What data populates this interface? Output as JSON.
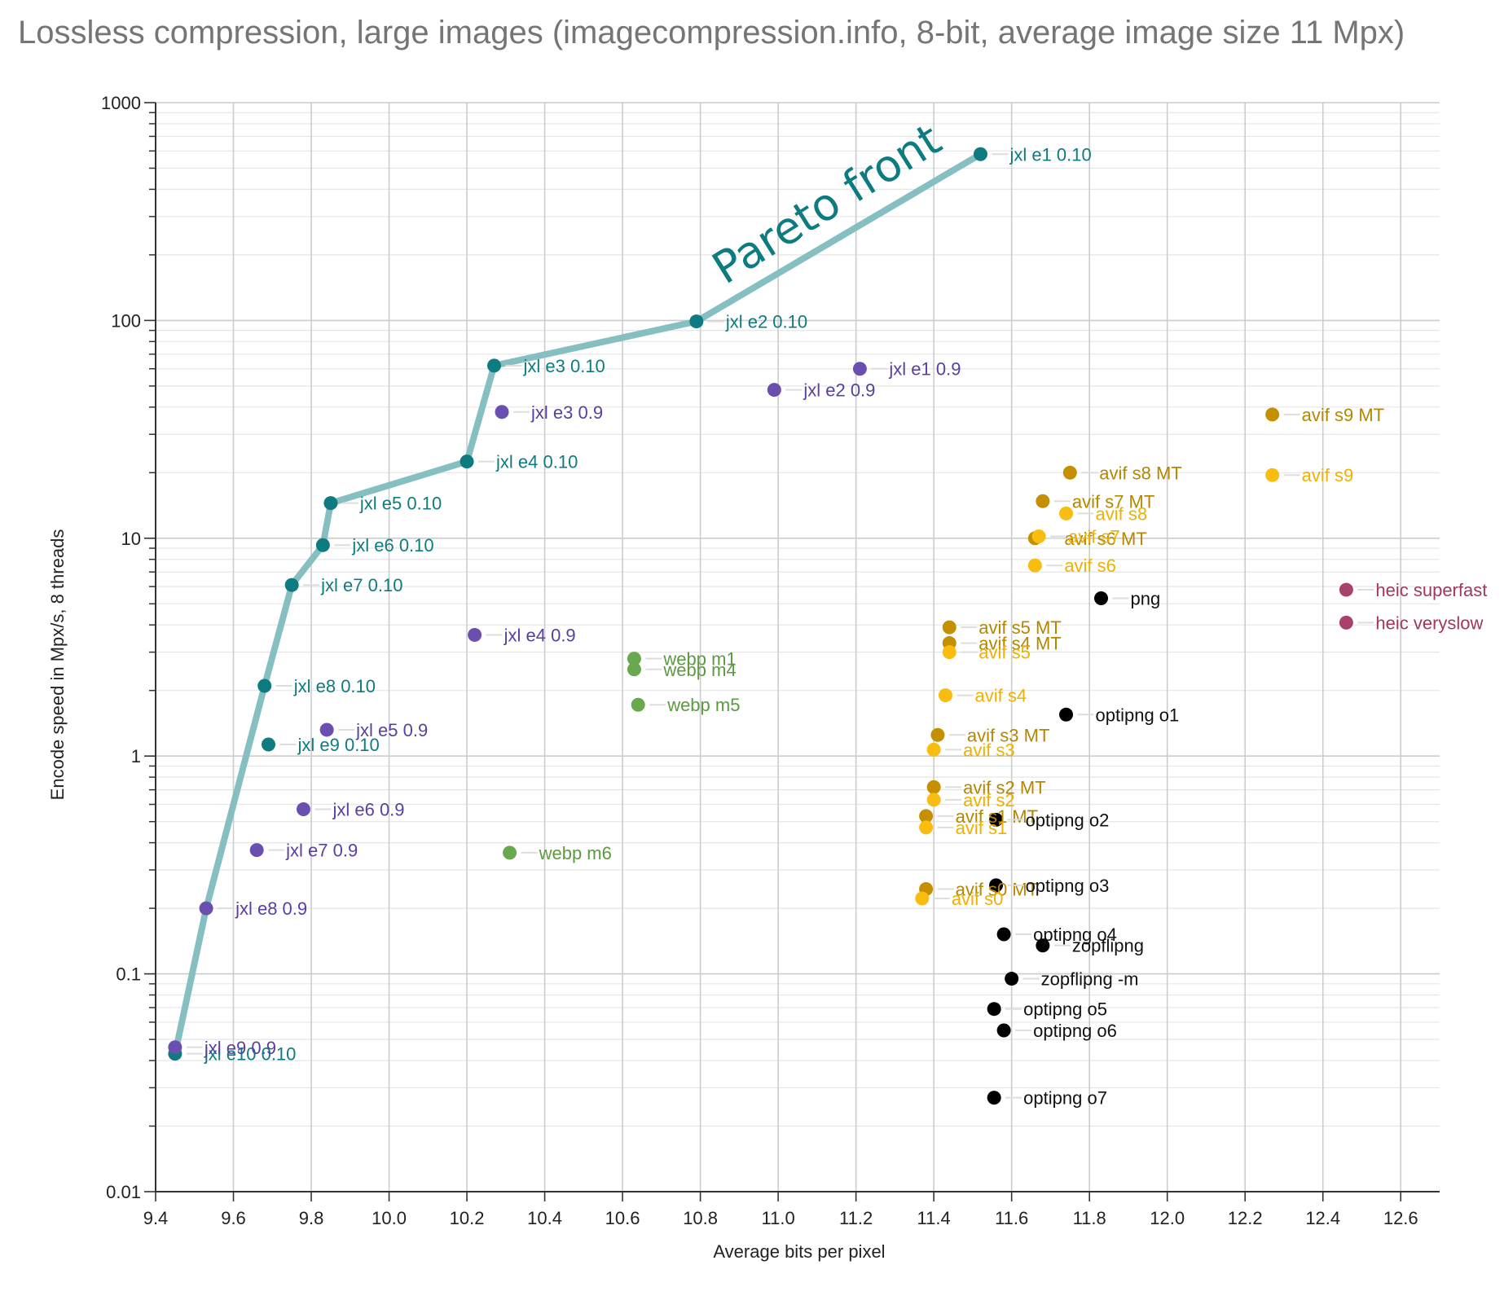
{
  "chart_data": {
    "type": "scatter",
    "title": "Lossless compression, large images (imagecompression.info, 8-bit, average image size 11 Mpx)",
    "xlabel": "Average bits per pixel",
    "ylabel": "Encode speed in Mpx/s, 8 threads",
    "xlim": [
      9.4,
      12.7
    ],
    "ylim": [
      0.01,
      1000
    ],
    "yscale": "log",
    "grid": true,
    "x_ticks": [
      "9.4",
      "9.6",
      "9.8",
      "10.0",
      "10.2",
      "10.4",
      "10.6",
      "10.8",
      "11.0",
      "11.2",
      "11.4",
      "11.6",
      "11.8",
      "12.0",
      "12.2",
      "12.4",
      "12.6"
    ],
    "y_ticks": [
      "0.01",
      "0.1",
      "1",
      "10",
      "100",
      "1000"
    ],
    "annotation": {
      "text": "Pareto front",
      "color": "#0e7b80"
    },
    "pareto_front": {
      "color": "#86bfc2",
      "x": [
        9.45,
        9.53,
        9.68,
        9.75,
        9.83,
        9.85,
        10.2,
        10.27,
        10.79,
        11.52
      ],
      "y": [
        0.043,
        0.2,
        2.1,
        6.1,
        9.3,
        14.5,
        22.5,
        62,
        99,
        580
      ]
    },
    "series": [
      {
        "name": "jxl 0.10",
        "color": "#0e7b80",
        "label_color": "#0e7b80",
        "points": [
          {
            "label": "jxl e1 0.10",
            "x": 11.52,
            "y": 580
          },
          {
            "label": "jxl e2 0.10",
            "x": 10.79,
            "y": 99
          },
          {
            "label": "jxl e3 0.10",
            "x": 10.27,
            "y": 62
          },
          {
            "label": "jxl e4 0.10",
            "x": 10.2,
            "y": 22.5
          },
          {
            "label": "jxl e5 0.10",
            "x": 9.85,
            "y": 14.5
          },
          {
            "label": "jxl e6 0.10",
            "x": 9.83,
            "y": 9.3
          },
          {
            "label": "jxl e7 0.10",
            "x": 9.75,
            "y": 6.1
          },
          {
            "label": "jxl e8 0.10",
            "x": 9.68,
            "y": 2.1
          },
          {
            "label": "jxl e9 0.10",
            "x": 9.69,
            "y": 1.13
          },
          {
            "label": "jxl e10 0.10",
            "x": 9.45,
            "y": 0.043
          }
        ]
      },
      {
        "name": "jxl 0.9",
        "color": "#6a4fb0",
        "label_color": "#5a3fa0",
        "points": [
          {
            "label": "jxl e1 0.9",
            "x": 11.21,
            "y": 60
          },
          {
            "label": "jxl e2 0.9",
            "x": 10.99,
            "y": 48
          },
          {
            "label": "jxl e3 0.9",
            "x": 10.29,
            "y": 38
          },
          {
            "label": "jxl e4 0.9",
            "x": 10.22,
            "y": 3.6
          },
          {
            "label": "jxl e5 0.9",
            "x": 9.84,
            "y": 1.32
          },
          {
            "label": "jxl e6 0.9",
            "x": 9.78,
            "y": 0.57
          },
          {
            "label": "jxl e7 0.9",
            "x": 9.66,
            "y": 0.37
          },
          {
            "label": "jxl e8 0.9",
            "x": 9.53,
            "y": 0.2
          },
          {
            "label": "jxl e9 0.9",
            "x": 9.45,
            "y": 0.046
          }
        ]
      },
      {
        "name": "webp",
        "color": "#6aa84f",
        "label_color": "#5b9a40",
        "points": [
          {
            "label": "webp m1",
            "x": 10.63,
            "y": 2.8
          },
          {
            "label": "webp m4",
            "x": 10.63,
            "y": 2.5
          },
          {
            "label": "webp m5",
            "x": 10.64,
            "y": 1.72
          },
          {
            "label": "webp m6",
            "x": 10.31,
            "y": 0.36
          }
        ]
      },
      {
        "name": "avif MT",
        "color": "#c49000",
        "label_color": "#b58600",
        "points": [
          {
            "label": "avif s9 MT",
            "x": 12.27,
            "y": 37
          },
          {
            "label": "avif s8 MT",
            "x": 11.75,
            "y": 20
          },
          {
            "label": "avif s7 MT",
            "x": 11.68,
            "y": 14.8
          },
          {
            "label": "avif s6 MT",
            "x": 11.66,
            "y": 10
          },
          {
            "label": "avif s5 MT",
            "x": 11.44,
            "y": 3.9
          },
          {
            "label": "avif s4 MT",
            "x": 11.44,
            "y": 3.3
          },
          {
            "label": "avif s3 MT",
            "x": 11.41,
            "y": 1.25
          },
          {
            "label": "avif s2 MT",
            "x": 11.4,
            "y": 0.72
          },
          {
            "label": "avif s1 MT",
            "x": 11.38,
            "y": 0.53
          },
          {
            "label": "avif s0 MT",
            "x": 11.38,
            "y": 0.245
          }
        ]
      },
      {
        "name": "avif",
        "color": "#f9bc10",
        "label_color": "#f0b000",
        "points": [
          {
            "label": "avif s9",
            "x": 12.27,
            "y": 19.5
          },
          {
            "label": "avif s8",
            "x": 11.74,
            "y": 13
          },
          {
            "label": "avif s7",
            "x": 11.67,
            "y": 10.2
          },
          {
            "label": "avif s6",
            "x": 11.66,
            "y": 7.5
          },
          {
            "label": "avif s5",
            "x": 11.44,
            "y": 3.0
          },
          {
            "label": "avif s4",
            "x": 11.43,
            "y": 1.9
          },
          {
            "label": "avif s3",
            "x": 11.4,
            "y": 1.07
          },
          {
            "label": "avif s2",
            "x": 11.4,
            "y": 0.63
          },
          {
            "label": "avif s1",
            "x": 11.38,
            "y": 0.47
          },
          {
            "label": "avif s0",
            "x": 11.37,
            "y": 0.222
          }
        ]
      },
      {
        "name": "png",
        "color": "#000000",
        "label_color": "#111111",
        "points": [
          {
            "label": "png",
            "x": 11.83,
            "y": 5.3
          },
          {
            "label": "optipng o1",
            "x": 11.74,
            "y": 1.55
          },
          {
            "label": "optipng o2",
            "x": 11.56,
            "y": 0.51
          },
          {
            "label": "optipng o3",
            "x": 11.56,
            "y": 0.255
          },
          {
            "label": "optipng o4",
            "x": 11.58,
            "y": 0.152
          },
          {
            "label": "zopflipng",
            "x": 11.68,
            "y": 0.135
          },
          {
            "label": "zopflipng -m",
            "x": 11.6,
            "y": 0.095
          },
          {
            "label": "optipng o5",
            "x": 11.555,
            "y": 0.069
          },
          {
            "label": "optipng o6",
            "x": 11.58,
            "y": 0.055
          },
          {
            "label": "optipng o7",
            "x": 11.555,
            "y": 0.027
          }
        ]
      },
      {
        "name": "heic",
        "color": "#a8416b",
        "label_color": "#a3365f",
        "points": [
          {
            "label": "heic superfast",
            "x": 12.46,
            "y": 5.8
          },
          {
            "label": "heic veryslow",
            "x": 12.46,
            "y": 4.1
          }
        ]
      }
    ]
  }
}
